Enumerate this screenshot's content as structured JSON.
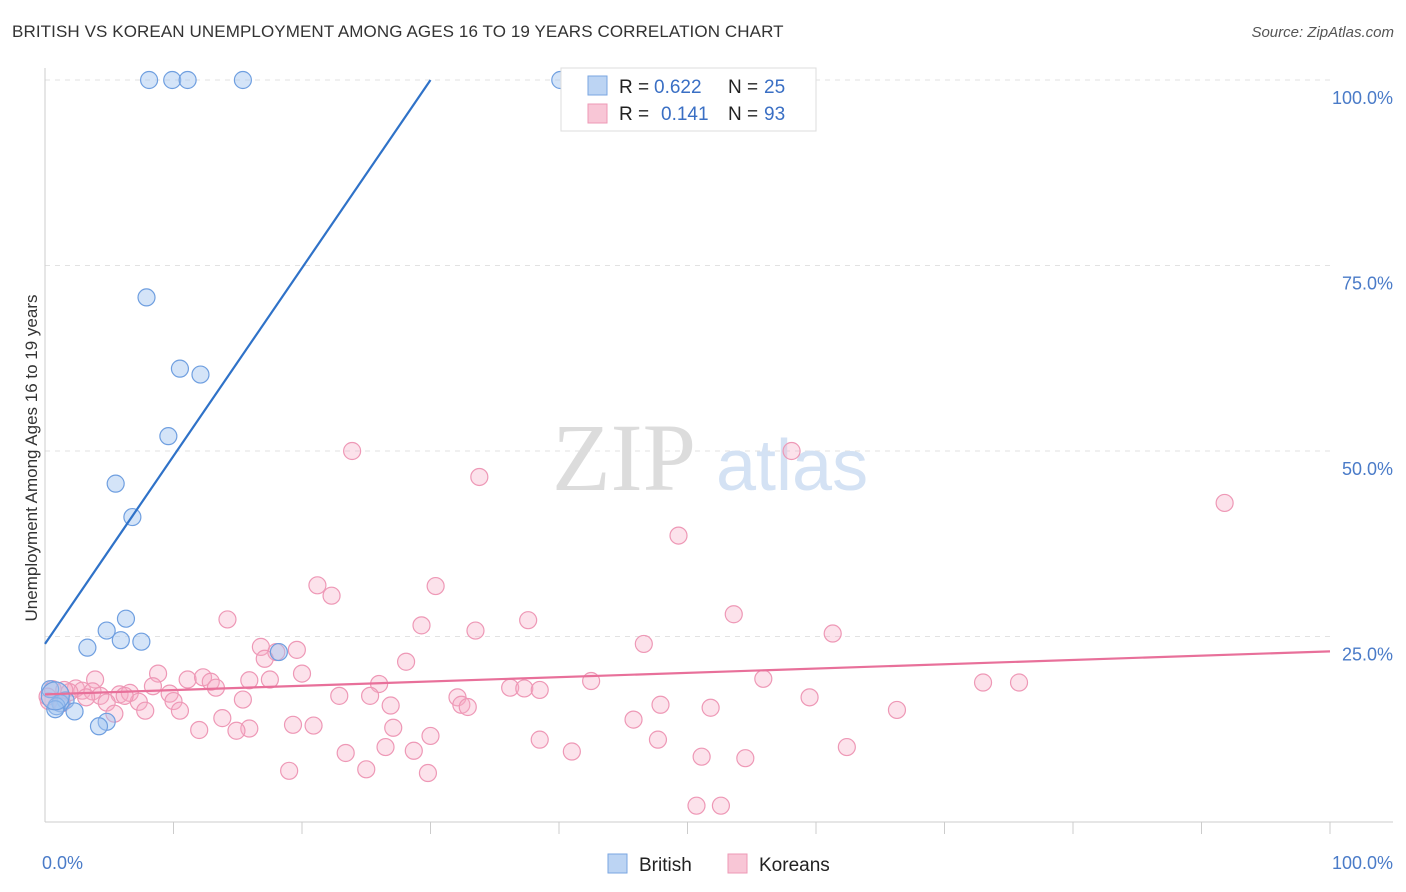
{
  "title": "BRITISH VS KOREAN UNEMPLOYMENT AMONG AGES 16 TO 19 YEARS CORRELATION CHART",
  "source": "Source: ZipAtlas.com",
  "watermark": {
    "zip": "ZIP",
    "atlas": "atlas"
  },
  "chart_data": {
    "type": "scatter",
    "xlabel": "",
    "ylabel": "Unemployment Among Ages 16 to 19 years",
    "xlim": [
      0,
      100
    ],
    "ylim": [
      0,
      100
    ],
    "x_tick_labels": [
      "0.0%",
      "100.0%"
    ],
    "y_ticks": [
      25,
      50,
      75,
      100
    ],
    "y_tick_labels": [
      "25.0%",
      "50.0%",
      "75.0%",
      "100.0%"
    ],
    "colors": {
      "british": "#6f9fe0",
      "koreans": "#f08cab",
      "british_line": "#2f72c8",
      "koreans_line": "#e8709a"
    },
    "legend": {
      "entries": [
        {
          "name": "British",
          "r_label": "R =",
          "r": "0.622",
          "n_label": "N =",
          "n": "25"
        },
        {
          "name": "Koreans",
          "r_label": "R =",
          "r": "0.141",
          "n_label": "N =",
          "n": "93"
        }
      ]
    },
    "series": [
      {
        "name": "British",
        "trend": {
          "x": [
            0,
            30
          ],
          "y": [
            24,
            100
          ]
        },
        "points": [
          {
            "x": 8.1,
            "y": 100
          },
          {
            "x": 9.9,
            "y": 100
          },
          {
            "x": 11.1,
            "y": 100
          },
          {
            "x": 15.4,
            "y": 100
          },
          {
            "x": 40.1,
            "y": 100
          },
          {
            "x": 7.9,
            "y": 70.7
          },
          {
            "x": 10.5,
            "y": 61.1
          },
          {
            "x": 12.1,
            "y": 60.3
          },
          {
            "x": 9.6,
            "y": 52.0
          },
          {
            "x": 5.5,
            "y": 45.6
          },
          {
            "x": 6.8,
            "y": 41.1
          },
          {
            "x": 6.3,
            "y": 27.4
          },
          {
            "x": 4.8,
            "y": 25.8
          },
          {
            "x": 7.5,
            "y": 24.3
          },
          {
            "x": 5.9,
            "y": 24.5
          },
          {
            "x": 3.3,
            "y": 23.5
          },
          {
            "x": 18.2,
            "y": 22.9
          },
          {
            "x": 0.4,
            "y": 17.9
          },
          {
            "x": 1.6,
            "y": 16.4
          },
          {
            "x": 1.2,
            "y": 16.0
          },
          {
            "x": 0.9,
            "y": 15.6
          },
          {
            "x": 2.3,
            "y": 14.9
          },
          {
            "x": 4.8,
            "y": 13.5
          },
          {
            "x": 4.2,
            "y": 12.9
          },
          {
            "x": 0.8,
            "y": 15.2
          }
        ]
      },
      {
        "name": "Koreans",
        "trend": {
          "x": [
            0,
            100
          ],
          "y": [
            17.2,
            23
          ]
        },
        "points": [
          {
            "x": 23.9,
            "y": 50.0
          },
          {
            "x": 58.1,
            "y": 50.0
          },
          {
            "x": 33.8,
            "y": 46.5
          },
          {
            "x": 91.8,
            "y": 43.0
          },
          {
            "x": 49.3,
            "y": 38.6
          },
          {
            "x": 21.2,
            "y": 31.9
          },
          {
            "x": 30.4,
            "y": 31.8
          },
          {
            "x": 22.3,
            "y": 30.5
          },
          {
            "x": 53.6,
            "y": 28.0
          },
          {
            "x": 14.2,
            "y": 27.3
          },
          {
            "x": 37.6,
            "y": 27.2
          },
          {
            "x": 29.3,
            "y": 26.5
          },
          {
            "x": 33.5,
            "y": 25.8
          },
          {
            "x": 61.3,
            "y": 25.4
          },
          {
            "x": 46.6,
            "y": 24.0
          },
          {
            "x": 16.8,
            "y": 23.6
          },
          {
            "x": 19.6,
            "y": 23.2
          },
          {
            "x": 18.0,
            "y": 22.9
          },
          {
            "x": 17.1,
            "y": 22.0
          },
          {
            "x": 28.1,
            "y": 21.6
          },
          {
            "x": 20.0,
            "y": 20.0
          },
          {
            "x": 8.8,
            "y": 20.0
          },
          {
            "x": 11.1,
            "y": 19.2
          },
          {
            "x": 12.3,
            "y": 19.5
          },
          {
            "x": 3.9,
            "y": 19.2
          },
          {
            "x": 17.5,
            "y": 19.2
          },
          {
            "x": 15.9,
            "y": 19.1
          },
          {
            "x": 42.5,
            "y": 19.0
          },
          {
            "x": 55.9,
            "y": 19.3
          },
          {
            "x": 73.0,
            "y": 18.8
          },
          {
            "x": 75.8,
            "y": 18.8
          },
          {
            "x": 26.0,
            "y": 18.6
          },
          {
            "x": 12.9,
            "y": 18.9
          },
          {
            "x": 8.4,
            "y": 18.3
          },
          {
            "x": 2.4,
            "y": 18.0
          },
          {
            "x": 2.9,
            "y": 17.7
          },
          {
            "x": 13.3,
            "y": 18.1
          },
          {
            "x": 36.2,
            "y": 18.1
          },
          {
            "x": 37.3,
            "y": 18.0
          },
          {
            "x": 38.5,
            "y": 17.8
          },
          {
            "x": 0.6,
            "y": 17.9
          },
          {
            "x": 1.9,
            "y": 17.5
          },
          {
            "x": 3.7,
            "y": 17.6
          },
          {
            "x": 4.3,
            "y": 17.0
          },
          {
            "x": 5.8,
            "y": 17.2
          },
          {
            "x": 6.6,
            "y": 17.4
          },
          {
            "x": 9.7,
            "y": 17.3
          },
          {
            "x": 22.9,
            "y": 17.0
          },
          {
            "x": 25.3,
            "y": 17.0
          },
          {
            "x": 15.4,
            "y": 16.5
          },
          {
            "x": 32.1,
            "y": 16.8
          },
          {
            "x": 59.5,
            "y": 16.8
          },
          {
            "x": 10.0,
            "y": 16.3
          },
          {
            "x": 7.3,
            "y": 16.2
          },
          {
            "x": 4.8,
            "y": 16.1
          },
          {
            "x": 0.3,
            "y": 16.3
          },
          {
            "x": 1.3,
            "y": 16.0
          },
          {
            "x": 26.9,
            "y": 15.7
          },
          {
            "x": 32.4,
            "y": 15.8
          },
          {
            "x": 32.9,
            "y": 15.5
          },
          {
            "x": 47.9,
            "y": 15.8
          },
          {
            "x": 51.8,
            "y": 15.4
          },
          {
            "x": 66.3,
            "y": 15.1
          },
          {
            "x": 5.4,
            "y": 14.6
          },
          {
            "x": 7.8,
            "y": 15.0
          },
          {
            "x": 10.5,
            "y": 15.0
          },
          {
            "x": 13.8,
            "y": 14.0
          },
          {
            "x": 45.8,
            "y": 13.8
          },
          {
            "x": 19.3,
            "y": 13.1
          },
          {
            "x": 20.9,
            "y": 13.0
          },
          {
            "x": 15.9,
            "y": 12.6
          },
          {
            "x": 12.0,
            "y": 12.4
          },
          {
            "x": 14.9,
            "y": 12.3
          },
          {
            "x": 27.1,
            "y": 12.7
          },
          {
            "x": 30.0,
            "y": 11.6
          },
          {
            "x": 38.5,
            "y": 11.1
          },
          {
            "x": 47.7,
            "y": 11.1
          },
          {
            "x": 26.5,
            "y": 10.1
          },
          {
            "x": 28.7,
            "y": 9.6
          },
          {
            "x": 41.0,
            "y": 9.5
          },
          {
            "x": 23.4,
            "y": 9.3
          },
          {
            "x": 62.4,
            "y": 10.1
          },
          {
            "x": 51.1,
            "y": 8.8
          },
          {
            "x": 54.5,
            "y": 8.6
          },
          {
            "x": 25.0,
            "y": 7.1
          },
          {
            "x": 19.0,
            "y": 6.9
          },
          {
            "x": 29.8,
            "y": 6.6
          },
          {
            "x": 50.7,
            "y": 2.2
          },
          {
            "x": 52.6,
            "y": 2.2
          },
          {
            "x": 0.2,
            "y": 16.9
          },
          {
            "x": 1.5,
            "y": 17.8
          },
          {
            "x": 3.2,
            "y": 16.8
          },
          {
            "x": 6.2,
            "y": 17.0
          }
        ]
      }
    ]
  }
}
